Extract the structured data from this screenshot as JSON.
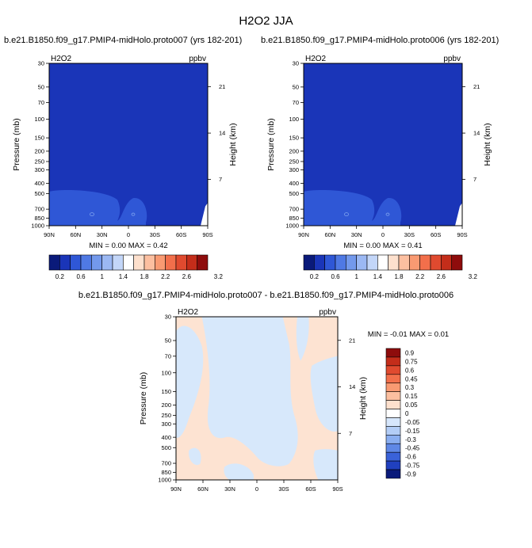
{
  "figure": {
    "title": "H2O2 JJA",
    "panel1_title": "b.e21.B1850.f09_g17.PMIP4-midHolo.proto007 (yrs 182-201)",
    "panel2_title": "b.e21.B1850.f09_g17.PMIP4-midHolo.proto006 (yrs 182-201)",
    "diff_title": "b.e21.B1850.f09_g17.PMIP4-midHolo.proto007 - b.e21.B1850.f09_g17.PMIP4-midHolo.proto006"
  },
  "colors": {
    "background_fill": "#1a35b8",
    "lower_blob": "#2f57d6",
    "diff_pos": "#fde3d2",
    "diff_neg": "#d7e8fb",
    "frame": "#000000"
  },
  "chart_data": [
    {
      "type": "heatmap",
      "variable_label": "H2O2",
      "units": "ppbv",
      "xlabel": "",
      "ylabel": "Pressure (mb)",
      "y2label": "Height (km)",
      "x_ticks": [
        "90N",
        "60N",
        "30N",
        "0",
        "30S",
        "60S",
        "90S"
      ],
      "y_ticks": [
        30,
        50,
        70,
        100,
        150,
        200,
        250,
        300,
        400,
        500,
        700,
        850,
        1000
      ],
      "y2_ticks": [
        21,
        14,
        7
      ],
      "ylim": [
        1000,
        30
      ],
      "y_scale": "log",
      "min_max_text": "MIN =   0.00   MAX =   0.42",
      "colorbar_labels": [
        "0.2",
        "0.6",
        "1",
        "1.4",
        "1.8",
        "2.2",
        "2.6",
        "3.2"
      ],
      "colorbar_colors": [
        "#0a1a7a",
        "#1a35b8",
        "#2f57d6",
        "#4f79e4",
        "#7399ec",
        "#9bb8f3",
        "#c3d6f8",
        "#ffffff",
        "#fde0cd",
        "#fcbfa0",
        "#f99a72",
        "#f26f4b",
        "#e04a2f",
        "#c42d1a",
        "#8e0c0c"
      ]
    },
    {
      "type": "heatmap",
      "variable_label": "H2O2",
      "units": "ppbv",
      "xlabel": "",
      "ylabel": "Pressure (mb)",
      "y2label": "Height (km)",
      "x_ticks": [
        "90N",
        "60N",
        "30N",
        "0",
        "30S",
        "60S",
        "90S"
      ],
      "y_ticks": [
        30,
        50,
        70,
        100,
        150,
        200,
        250,
        300,
        400,
        500,
        700,
        850,
        1000
      ],
      "y2_ticks": [
        21,
        14,
        7
      ],
      "ylim": [
        1000,
        30
      ],
      "y_scale": "log",
      "min_max_text": "MIN =   0.00   MAX =   0.41",
      "colorbar_labels": [
        "0.2",
        "0.6",
        "1",
        "1.4",
        "1.8",
        "2.2",
        "2.6",
        "3.2"
      ],
      "colorbar_colors": [
        "#0a1a7a",
        "#1a35b8",
        "#2f57d6",
        "#4f79e4",
        "#7399ec",
        "#9bb8f3",
        "#c3d6f8",
        "#ffffff",
        "#fde0cd",
        "#fcbfa0",
        "#f99a72",
        "#f26f4b",
        "#e04a2f",
        "#c42d1a",
        "#8e0c0c"
      ]
    },
    {
      "type": "heatmap",
      "variable_label": "H2O2",
      "units": "ppbv",
      "xlabel": "",
      "ylabel": "Pressure (mb)",
      "y2label": "Height (km)",
      "x_ticks": [
        "90N",
        "60N",
        "30N",
        "0",
        "30S",
        "60S",
        "90S"
      ],
      "y_ticks": [
        30,
        50,
        70,
        100,
        150,
        200,
        250,
        300,
        400,
        500,
        700,
        850,
        1000
      ],
      "y2_ticks": [
        21,
        14,
        7
      ],
      "ylim": [
        1000,
        30
      ],
      "y_scale": "log",
      "min_max_text": "MIN = -0.01   MAX =   0.01",
      "colorbar_labels": [
        "0.9",
        "0.75",
        "0.6",
        "0.45",
        "0.3",
        "0.15",
        "0.05",
        "0",
        "-0.05",
        "-0.15",
        "-0.3",
        "-0.45",
        "-0.6",
        "-0.75",
        "-0.9"
      ],
      "colorbar_colors": [
        "#8e0c0c",
        "#c42d1a",
        "#e04a2f",
        "#f26f4b",
        "#f99a72",
        "#fcbfa0",
        "#fde0cd",
        "#ffffff",
        "#d6e6fb",
        "#b3cdf6",
        "#8aaef0",
        "#5f88e6",
        "#3a62d9",
        "#2040bf",
        "#0a1a7a"
      ]
    }
  ]
}
